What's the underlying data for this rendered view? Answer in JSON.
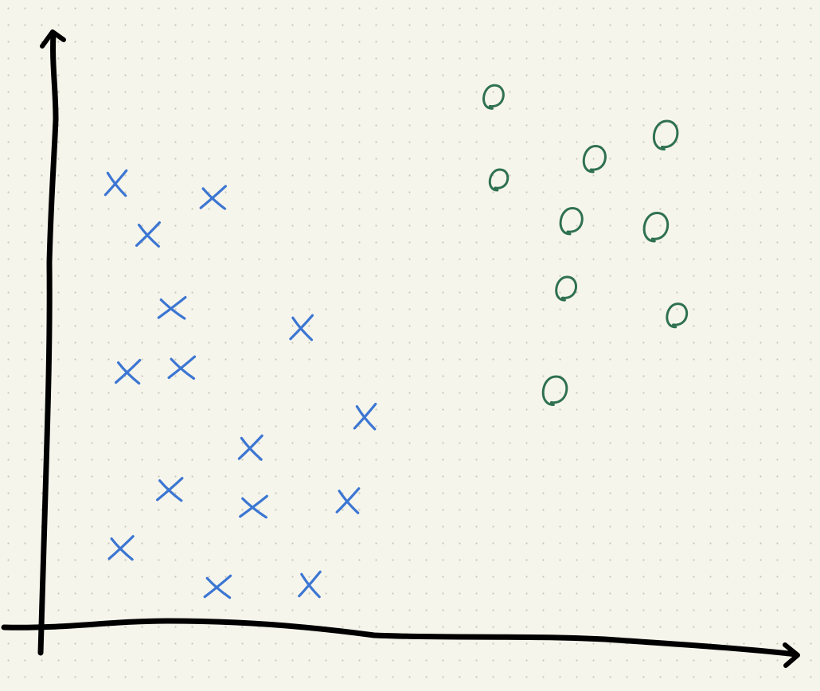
{
  "chart_data": {
    "type": "scatter",
    "title": "",
    "xlabel": "",
    "ylabel": "",
    "grid": "dot-grid",
    "background": "#f6f5ec",
    "xlim": [
      0,
      10
    ],
    "ylim": [
      0,
      10
    ],
    "series": [
      {
        "marker": "x",
        "color": "#3c76d2",
        "points": [
          {
            "x": 0.91,
            "y": 7.46
          },
          {
            "x": 1.34,
            "y": 6.6
          },
          {
            "x": 2.21,
            "y": 7.22
          },
          {
            "x": 1.66,
            "y": 5.37
          },
          {
            "x": 3.39,
            "y": 5.04
          },
          {
            "x": 1.07,
            "y": 4.3
          },
          {
            "x": 1.79,
            "y": 4.37
          },
          {
            "x": 4.24,
            "y": 3.55
          },
          {
            "x": 2.71,
            "y": 3.03
          },
          {
            "x": 1.63,
            "y": 2.33
          },
          {
            "x": 2.75,
            "y": 2.04
          },
          {
            "x": 4.01,
            "y": 2.14
          },
          {
            "x": 0.98,
            "y": 1.35
          },
          {
            "x": 2.27,
            "y": 0.7
          },
          {
            "x": 3.5,
            "y": 0.74
          }
        ]
      },
      {
        "marker": "o",
        "color": "#2f7150",
        "points": [
          {
            "x": 5.96,
            "y": 8.91
          },
          {
            "x": 8.26,
            "y": 8.27
          },
          {
            "x": 7.31,
            "y": 7.87
          },
          {
            "x": 6.03,
            "y": 7.52
          },
          {
            "x": 7.0,
            "y": 6.83
          },
          {
            "x": 8.13,
            "y": 6.73
          },
          {
            "x": 6.93,
            "y": 5.7
          },
          {
            "x": 8.41,
            "y": 5.25
          },
          {
            "x": 6.78,
            "y": 3.99
          }
        ]
      }
    ]
  }
}
